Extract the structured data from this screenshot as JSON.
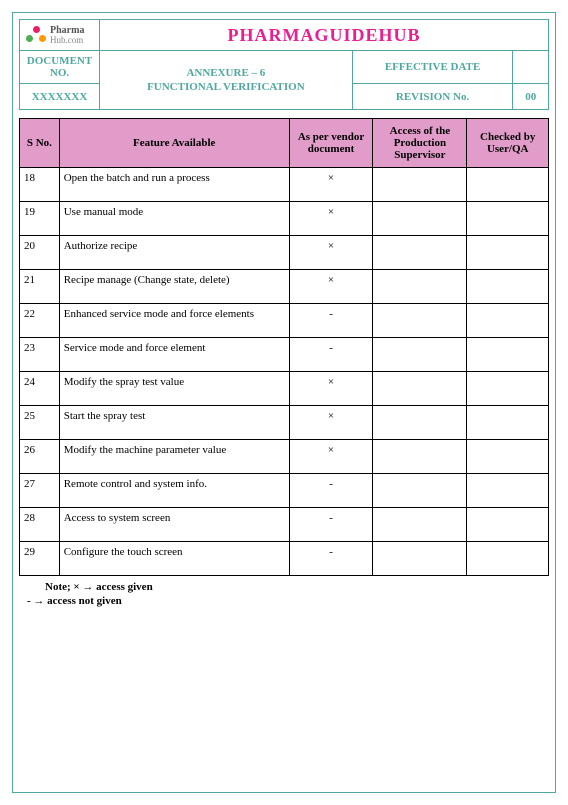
{
  "brand": "PHARMAGUIDEHUB",
  "logo": {
    "line1": "Pharma",
    "line2": "Hub.com"
  },
  "header": {
    "docno_label": "DOCUMENT NO.",
    "docno_value": "XXXXXXX",
    "annex_line1": "ANNEXURE – 6",
    "annex_line2": "FUNCTIONAL VERIFICATION",
    "eff_label": "EFFECTIVE DATE",
    "rev_label": "REVISION No.",
    "rev_value": "00"
  },
  "columns": {
    "sno": "S No.",
    "feature": "Feature Available",
    "vendor": "As per vendor document",
    "access": "Access of the Production Supervisor",
    "checked": "Checked by User/QA"
  },
  "rows": [
    {
      "sno": "18",
      "feature": "Open the batch and run a process",
      "vendor": "×"
    },
    {
      "sno": "19",
      "feature": "Use manual mode",
      "vendor": "×"
    },
    {
      "sno": "20",
      "feature": "Authorize recipe",
      "vendor": "×"
    },
    {
      "sno": "21",
      "feature": "Recipe manage (Change state, delete)",
      "vendor": "×"
    },
    {
      "sno": "22",
      "feature": "Enhanced service mode and force elements",
      "vendor": "-"
    },
    {
      "sno": "23",
      "feature": "Service mode and force element",
      "vendor": "-"
    },
    {
      "sno": "24",
      "feature": "Modify the spray test value",
      "vendor": "×"
    },
    {
      "sno": "25",
      "feature": "Start the spray test",
      "vendor": "×"
    },
    {
      "sno": "26",
      "feature": "Modify the machine parameter value",
      "vendor": "×"
    },
    {
      "sno": "27",
      "feature": "Remote control and system info.",
      "vendor": "-"
    },
    {
      "sno": "28",
      "feature": "Access to system screen",
      "vendor": "-"
    },
    {
      "sno": "29",
      "feature": "Configure the touch screen",
      "vendor": "-"
    }
  ],
  "note_line1": "Note; × → access given",
  "note_line2": "-  → access not given",
  "colors": {
    "teal": "#4fa89f",
    "pink_header": "#e19cc9",
    "brand_pink": "#e91e8f"
  }
}
